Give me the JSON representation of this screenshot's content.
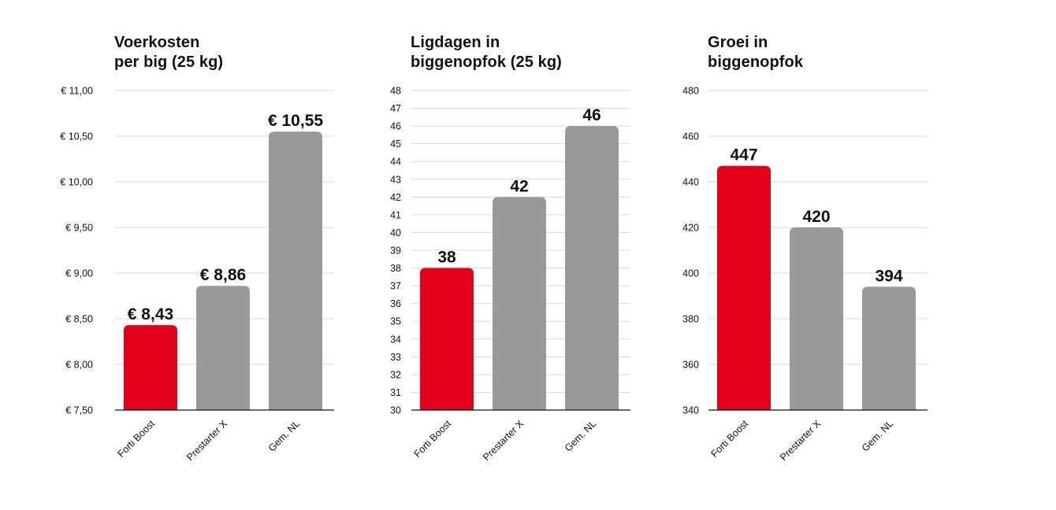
{
  "colors": {
    "highlight": "#e2001a",
    "neutral": "#999999"
  },
  "chart_data": [
    {
      "type": "bar",
      "title": "Voerkosten\nper big (25 kg)",
      "categories": [
        "Forti Boost",
        "Prestarter X",
        "Gem. NL"
      ],
      "values": [
        8.43,
        8.86,
        10.55
      ],
      "data_labels": [
        "€ 8,43",
        "€ 8,86",
        "€ 10,55"
      ],
      "highlight_index": 0,
      "ylim": [
        7.5,
        11.0
      ],
      "yticks": [
        7.5,
        8.0,
        8.5,
        9.0,
        9.5,
        10.0,
        10.5,
        11.0
      ],
      "ytick_labels": [
        "€ 7,50",
        "€ 8,00",
        "€ 8,50",
        "€ 9,00",
        "€ 9,50",
        "€ 10,00",
        "€ 10,50",
        "€ 11,00"
      ],
      "grid": true
    },
    {
      "type": "bar",
      "title": "Ligdagen in\nbiggenopfok (25 kg)",
      "categories": [
        "Forti Boost",
        "Prestarter X",
        "Gem. NL"
      ],
      "values": [
        38,
        42,
        46
      ],
      "data_labels": [
        "38",
        "42",
        "46"
      ],
      "highlight_index": 0,
      "ylim": [
        30,
        48
      ],
      "yticks": [
        30,
        31,
        32,
        33,
        34,
        35,
        36,
        37,
        38,
        39,
        40,
        41,
        42,
        43,
        44,
        45,
        46,
        47,
        48
      ],
      "ytick_labels": [
        "30",
        "31",
        "32",
        "33",
        "34",
        "35",
        "36",
        "37",
        "38",
        "39",
        "40",
        "41",
        "42",
        "43",
        "44",
        "45",
        "46",
        "47",
        "48"
      ],
      "grid": true
    },
    {
      "type": "bar",
      "title": "Groei in\nbiggenopfok",
      "categories": [
        "Forti Boost",
        "Prestarter X",
        "Gem. NL"
      ],
      "values": [
        447,
        420,
        394
      ],
      "data_labels": [
        "447",
        "420",
        "394"
      ],
      "highlight_index": 0,
      "ylim": [
        340,
        480
      ],
      "yticks": [
        340,
        360,
        380,
        400,
        420,
        440,
        460,
        480
      ],
      "ytick_labels": [
        "340",
        "360",
        "380",
        "400",
        "420",
        "440",
        "460",
        "480"
      ],
      "grid": true
    }
  ]
}
